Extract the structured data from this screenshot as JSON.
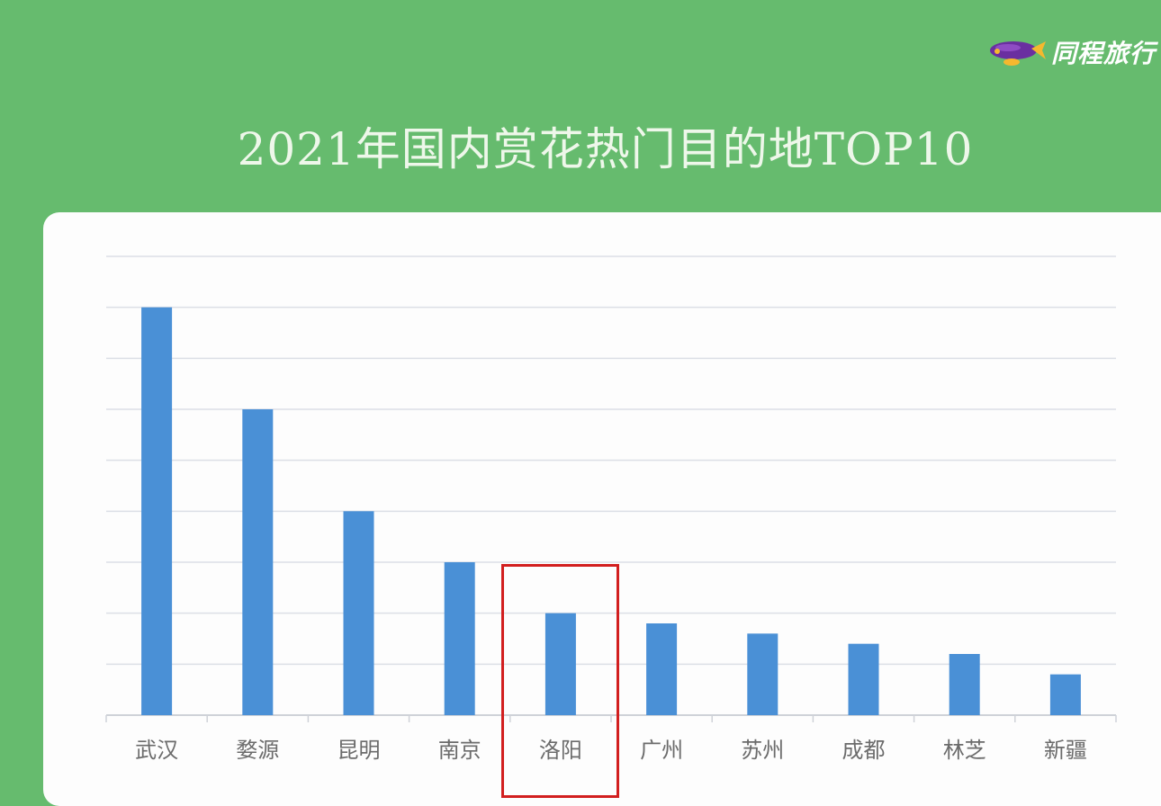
{
  "brand": {
    "logo_text": "同程旅行",
    "logo_icon": "blimp-icon",
    "colors": {
      "background": "#66bb6e",
      "bar": "#4a90d6",
      "highlight": "#d21f1f"
    }
  },
  "chart_data": {
    "type": "bar",
    "title": "2021年国内赏花热门目的地TOP10",
    "categories": [
      "武汉",
      "婺源",
      "昆明",
      "南京",
      "洛阳",
      "广州",
      "苏州",
      "成都",
      "林芝",
      "新疆"
    ],
    "values": [
      80,
      60,
      40,
      30,
      20,
      18,
      16,
      14,
      12,
      8
    ],
    "ylim": [
      0,
      90
    ],
    "y_ticks_shown": false,
    "grid": true,
    "highlighted_category": "洛阳"
  }
}
